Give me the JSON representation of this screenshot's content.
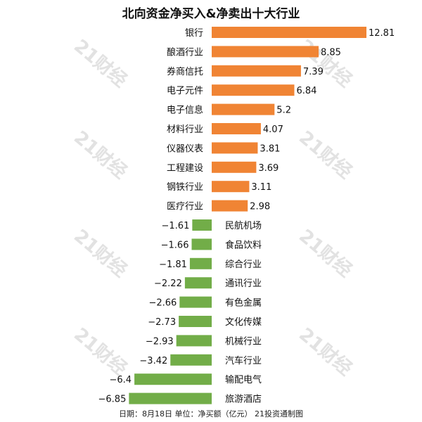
{
  "chart_data": {
    "type": "bar",
    "title": "北向资金净买入&净卖出十大行业",
    "categories": [
      "银行",
      "酿酒行业",
      "券商信托",
      "电子元件",
      "电子信息",
      "材料行业",
      "仪器仪表",
      "工程建设",
      "钢铁行业",
      "医疗行业",
      "民航机场",
      "食品饮料",
      "综合行业",
      "通讯行业",
      "有色金属",
      "文化传媒",
      "机械行业",
      "汽车行业",
      "输配电气",
      "旅游酒店"
    ],
    "value_labels": [
      "12.81",
      "8.85",
      "7.39",
      "6.84",
      "5.2",
      "4.07",
      "3.81",
      "3.69",
      "3.11",
      "2.98",
      "−1.61",
      "−1.66",
      "−1.81",
      "−2.22",
      "−2.66",
      "−2.73",
      "−2.93",
      "−3.42",
      "−6.4",
      "−6.85"
    ],
    "values": [
      12.81,
      8.85,
      7.39,
      6.84,
      5.2,
      4.07,
      3.81,
      3.69,
      3.11,
      2.98,
      -1.61,
      -1.66,
      -1.81,
      -2.22,
      -2.66,
      -2.73,
      -2.93,
      -3.42,
      -6.4,
      -6.85
    ],
    "orientation": "horizontal",
    "xlim": [
      -6.85,
      12.81
    ],
    "grid": false,
    "colors": {
      "positive": "#f08434",
      "negative": "#72ad48"
    }
  },
  "footnote": "日期：8月18日 单位：净买额（亿元） 21投资通制图",
  "watermark": "21财经"
}
